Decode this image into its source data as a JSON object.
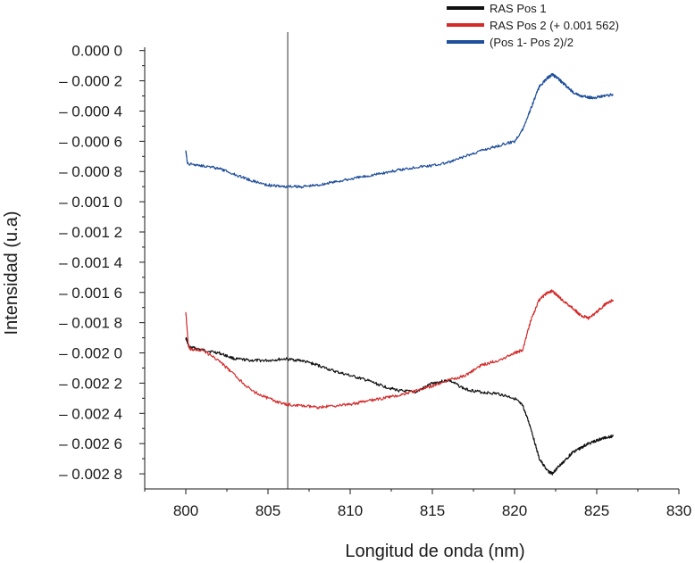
{
  "chart_data": {
    "type": "line",
    "xlabel": "Longitud de onda (nm)",
    "ylabel": "Intensidad (u.a)",
    "xlim": [
      797.5,
      830
    ],
    "ylim": [
      -0.0029,
      1e-05
    ],
    "x_ticks": [
      800,
      805,
      810,
      815,
      820,
      825,
      830
    ],
    "x_tick_labels": [
      "800",
      "805",
      "810",
      "815",
      "820",
      "825",
      "830"
    ],
    "y_ticks": [
      0,
      -0.0002,
      -0.0004,
      -0.0006,
      -0.0008,
      -0.001,
      -0.0012,
      -0.0014,
      -0.0016,
      -0.0018,
      -0.002,
      -0.0022,
      -0.0024,
      -0.0026,
      -0.0028
    ],
    "y_tick_labels": [
      "0.000 0",
      "– 0.000 2",
      "– 0.000 4",
      "– 0.000 6",
      "– 0.000 8",
      "– 0.001 0",
      "– 0.001 2",
      "– 0.001 4",
      "– 0.001 6",
      "– 0.001 8",
      "– 0.002 0",
      "– 0.002 2",
      "– 0.002 4",
      "– 0.002 6",
      "– 0.002 8"
    ],
    "vertical_line_x": 806.2,
    "grid": false,
    "legend_position": "top-right",
    "series": [
      {
        "name": "RAS Pos 1",
        "color": "#111111",
        "x": [
          800,
          800.2,
          801,
          802,
          803,
          804,
          805,
          806,
          807,
          808,
          809,
          810,
          811,
          812,
          813,
          814,
          815,
          816,
          817,
          818,
          819,
          820,
          820.5,
          821,
          821.5,
          822,
          822.3,
          822.6,
          823,
          823.5,
          824,
          824.5,
          825,
          825.5,
          826
        ],
        "y": [
          -0.0019,
          -0.00196,
          -0.00198,
          -0.002,
          -0.00204,
          -0.00205,
          -0.00205,
          -0.00204,
          -0.00205,
          -0.00208,
          -0.00212,
          -0.00215,
          -0.00218,
          -0.00222,
          -0.00225,
          -0.00226,
          -0.0022,
          -0.00218,
          -0.00224,
          -0.00226,
          -0.00227,
          -0.0023,
          -0.00235,
          -0.0025,
          -0.0027,
          -0.00278,
          -0.0028,
          -0.00276,
          -0.00272,
          -0.00266,
          -0.00263,
          -0.0026,
          -0.00258,
          -0.00256,
          -0.00255
        ]
      },
      {
        "name": "RAS Pos 2 (+ 0.001 562)",
        "color": "#d42a2a",
        "x": [
          800,
          800.15,
          800.3,
          801,
          802,
          803,
          804,
          805,
          806,
          807,
          808,
          809,
          810,
          811,
          812,
          813,
          814,
          815,
          816,
          817,
          818,
          819,
          820,
          820.5,
          821,
          821.5,
          822,
          822.3,
          822.6,
          823,
          823.5,
          824,
          824.5,
          825,
          825.5,
          826
        ],
        "y": [
          -0.00173,
          -0.00195,
          -0.00198,
          -0.00198,
          -0.00205,
          -0.00215,
          -0.00225,
          -0.0023,
          -0.00234,
          -0.00235,
          -0.00236,
          -0.00235,
          -0.00234,
          -0.00232,
          -0.0023,
          -0.00228,
          -0.00225,
          -0.00222,
          -0.00218,
          -0.00215,
          -0.00208,
          -0.00205,
          -0.002,
          -0.00198,
          -0.00178,
          -0.00165,
          -0.0016,
          -0.00159,
          -0.00162,
          -0.00166,
          -0.0017,
          -0.00175,
          -0.00177,
          -0.00173,
          -0.00168,
          -0.00165
        ]
      },
      {
        "name": "(Pos 1- Pos 2)/2",
        "color": "#1f4e9a",
        "x": [
          800,
          800.1,
          801,
          802,
          803,
          804,
          805,
          806,
          807,
          808,
          809,
          810,
          811,
          812,
          813,
          814,
          815,
          816,
          817,
          818,
          819,
          820,
          820.5,
          821,
          821.5,
          822,
          822.3,
          822.6,
          823,
          823.5,
          824,
          824.5,
          825,
          825.5,
          826
        ],
        "y": [
          -0.00066,
          -0.00075,
          -0.00076,
          -0.00078,
          -0.00082,
          -0.00086,
          -0.00089,
          -0.0009,
          -0.0009,
          -0.00089,
          -0.00087,
          -0.00085,
          -0.00083,
          -0.00081,
          -0.00079,
          -0.00077,
          -0.00076,
          -0.00074,
          -0.0007,
          -0.00066,
          -0.00063,
          -0.0006,
          -0.00052,
          -0.00038,
          -0.00024,
          -0.00018,
          -0.00016,
          -0.00018,
          -0.00022,
          -0.00027,
          -0.0003,
          -0.00031,
          -0.00031,
          -0.0003,
          -0.00029
        ]
      }
    ]
  }
}
